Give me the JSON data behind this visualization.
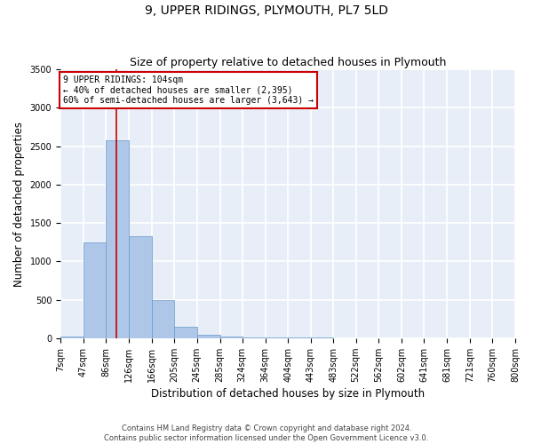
{
  "title": "9, UPPER RIDINGS, PLYMOUTH, PL7 5LD",
  "subtitle": "Size of property relative to detached houses in Plymouth",
  "xlabel": "Distribution of detached houses by size in Plymouth",
  "ylabel": "Number of detached properties",
  "annotation_line1": "9 UPPER RIDINGS: 104sqm",
  "annotation_line2": "← 40% of detached houses are smaller (2,395)",
  "annotation_line3": "60% of semi-detached houses are larger (3,643) →",
  "property_size": 104,
  "bin_edges": [
    7,
    47,
    86,
    126,
    166,
    205,
    245,
    285,
    324,
    364,
    404,
    443,
    483,
    522,
    562,
    602,
    641,
    681,
    721,
    760,
    800
  ],
  "bar_heights": [
    20,
    1250,
    2580,
    1330,
    490,
    150,
    40,
    25,
    10,
    5,
    5,
    5,
    2,
    1,
    1,
    1,
    1,
    1,
    1,
    1
  ],
  "bar_color": "#aec6e8",
  "bar_edge_color": "#6699cc",
  "vline_color": "#cc0000",
  "annotation_box_color": "#cc0000",
  "background_color": "#e8eef8",
  "grid_color": "#ffffff",
  "ylim": [
    0,
    3500
  ],
  "yticks": [
    0,
    500,
    1000,
    1500,
    2000,
    2500,
    3000,
    3500
  ],
  "tick_labels": [
    "7sqm",
    "47sqm",
    "86sqm",
    "126sqm",
    "166sqm",
    "205sqm",
    "245sqm",
    "285sqm",
    "324sqm",
    "364sqm",
    "404sqm",
    "443sqm",
    "483sqm",
    "522sqm",
    "562sqm",
    "602sqm",
    "641sqm",
    "681sqm",
    "721sqm",
    "760sqm",
    "800sqm"
  ],
  "footnote1": "Contains HM Land Registry data © Crown copyright and database right 2024.",
  "footnote2": "Contains public sector information licensed under the Open Government Licence v3.0.",
  "title_fontsize": 10,
  "subtitle_fontsize": 9,
  "axis_label_fontsize": 8.5,
  "tick_fontsize": 7,
  "annotation_fontsize": 7,
  "footnote_fontsize": 6
}
